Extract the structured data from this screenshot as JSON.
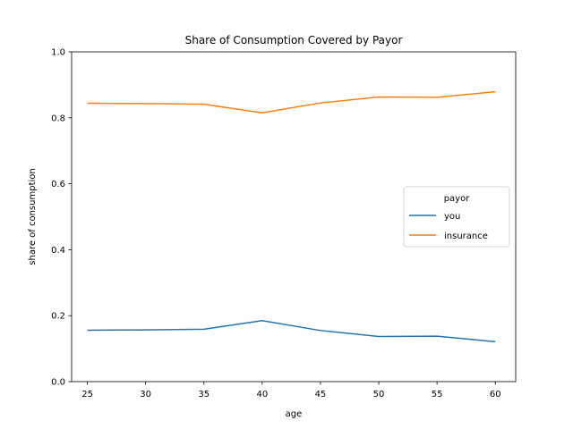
{
  "chart_data": {
    "type": "line",
    "title": "Share of Consumption Covered by Payor",
    "xlabel": "age",
    "ylabel": "share of consumption",
    "x": [
      25,
      30,
      35,
      40,
      45,
      50,
      55,
      60
    ],
    "xticks": [
      "25",
      "30",
      "35",
      "40",
      "45",
      "50",
      "55",
      "60"
    ],
    "yticks": [
      "0.0",
      "0.2",
      "0.4",
      "0.6",
      "0.8",
      "1.0"
    ],
    "xlim": [
      23.65,
      61.75
    ],
    "ylim": [
      0.0,
      1.0
    ],
    "grid": false,
    "legend": {
      "title": "payor",
      "placement": "center-right"
    },
    "series": [
      {
        "name": "you",
        "color": "#1f77b4",
        "values": [
          0.156,
          0.157,
          0.159,
          0.185,
          0.155,
          0.137,
          0.138,
          0.121
        ]
      },
      {
        "name": "insurance",
        "color": "#ff7f0e",
        "values": [
          0.844,
          0.843,
          0.841,
          0.815,
          0.845,
          0.863,
          0.862,
          0.879
        ]
      }
    ]
  }
}
